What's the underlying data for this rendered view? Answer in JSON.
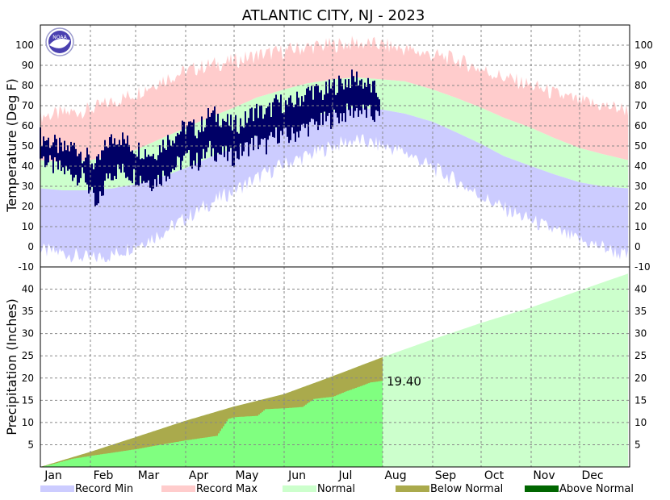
{
  "title": "ATLANTIC CITY, NJ - 2023",
  "logo_text": "NOAA",
  "colors": {
    "record_min": "#ccccff",
    "record_max": "#ffcccc",
    "normal": "#ccffcc",
    "below_normal": "#aaaa4c",
    "above_normal": "#006600",
    "observed_precip": "#80ff80",
    "observed_temp": "#000066",
    "grid": "#888888"
  },
  "chart_data": [
    {
      "type": "bar",
      "panel": "temperature",
      "ylabel": "Temperature (Deg F)",
      "ylim": [
        -10,
        110
      ],
      "yticks": [
        -10,
        0,
        10,
        20,
        30,
        40,
        50,
        60,
        70,
        80,
        90,
        100
      ],
      "x_unit": "day of year",
      "xlim": [
        1,
        365
      ],
      "grid": true,
      "series": [
        {
          "name": "Record Max",
          "x": [
            1,
            15,
            32,
            46,
            60,
            74,
            91,
            105,
            121,
            135,
            152,
            166,
            182,
            196,
            213,
            227,
            244,
            258,
            274,
            288,
            305,
            319,
            335,
            349,
            365
          ],
          "values": [
            65,
            66,
            68,
            72,
            76,
            82,
            87,
            90,
            92,
            95,
            97,
            99,
            100,
            101,
            100,
            98,
            95,
            93,
            88,
            84,
            80,
            76,
            72,
            70,
            68
          ]
        },
        {
          "name": "Normal high",
          "x": [
            1,
            15,
            32,
            46,
            60,
            74,
            91,
            105,
            121,
            135,
            152,
            166,
            182,
            196,
            213,
            227,
            244,
            258,
            274,
            288,
            305,
            319,
            335,
            349,
            365
          ],
          "values": [
            43,
            42,
            43,
            45,
            48,
            53,
            59,
            64,
            69,
            74,
            78,
            81,
            83,
            84,
            83,
            82,
            78,
            74,
            69,
            64,
            59,
            54,
            49,
            46,
            43
          ]
        },
        {
          "name": "Normal low",
          "x": [
            1,
            15,
            32,
            46,
            60,
            74,
            91,
            105,
            121,
            135,
            152,
            166,
            182,
            196,
            213,
            227,
            244,
            258,
            274,
            288,
            305,
            319,
            335,
            349,
            365
          ],
          "values": [
            29,
            28,
            28,
            29,
            31,
            34,
            39,
            44,
            49,
            55,
            60,
            64,
            67,
            69,
            68,
            66,
            62,
            57,
            51,
            45,
            40,
            36,
            32,
            30,
            29
          ]
        },
        {
          "name": "Record Min",
          "x": [
            1,
            15,
            32,
            46,
            60,
            74,
            91,
            105,
            121,
            135,
            152,
            166,
            182,
            196,
            213,
            227,
            244,
            258,
            274,
            288,
            305,
            319,
            335,
            349,
            365
          ],
          "values": [
            -2,
            -3,
            -6,
            -4,
            1,
            6,
            14,
            21,
            28,
            34,
            41,
            45,
            50,
            53,
            50,
            47,
            39,
            33,
            25,
            19,
            13,
            8,
            3,
            0,
            -5
          ]
        },
        {
          "name": "Observed high",
          "x": [
            1,
            8,
            15,
            22,
            29,
            36,
            43,
            50,
            57,
            64,
            71,
            78,
            85,
            92,
            99,
            106,
            113,
            120,
            127,
            134,
            141,
            148,
            155,
            162,
            169,
            176,
            183,
            190,
            197,
            204,
            211
          ],
          "values": [
            55,
            52,
            48,
            50,
            45,
            40,
            52,
            55,
            50,
            48,
            46,
            52,
            56,
            60,
            58,
            66,
            64,
            60,
            62,
            68,
            66,
            72,
            70,
            74,
            78,
            76,
            80,
            82,
            84,
            80,
            76
          ]
        },
        {
          "name": "Observed low",
          "x": [
            1,
            8,
            15,
            22,
            29,
            36,
            43,
            50,
            57,
            64,
            71,
            78,
            85,
            92,
            99,
            106,
            113,
            120,
            127,
            134,
            141,
            148,
            155,
            162,
            169,
            176,
            183,
            190,
            197,
            204,
            211
          ],
          "values": [
            45,
            40,
            38,
            36,
            34,
            18,
            36,
            38,
            36,
            34,
            32,
            36,
            40,
            44,
            42,
            48,
            46,
            44,
            48,
            52,
            50,
            56,
            54,
            58,
            60,
            62,
            64,
            66,
            68,
            66,
            64
          ]
        }
      ]
    },
    {
      "type": "area",
      "panel": "precipitation",
      "ylabel": "Precipitation (Inches)",
      "ylim": [
        0,
        45
      ],
      "yticks": [
        5,
        10,
        15,
        20,
        25,
        30,
        35,
        40
      ],
      "x_unit": "day of year",
      "xlim": [
        1,
        365
      ],
      "grid": true,
      "month_labels": [
        "Jan",
        "Feb",
        "Mar",
        "Apr",
        "May",
        "Jun",
        "Jul",
        "Aug",
        "Sep",
        "Oct",
        "Nov",
        "Dec"
      ],
      "month_start_days": [
        1,
        32,
        60,
        91,
        121,
        152,
        182,
        213,
        244,
        274,
        305,
        335
      ],
      "series": [
        {
          "name": "Normal",
          "x": [
            1,
            32,
            60,
            91,
            121,
            152,
            182,
            213,
            244,
            274,
            305,
            335,
            365
          ],
          "values": [
            0,
            3.4,
            6.7,
            10.4,
            13.6,
            16.4,
            20.4,
            24.7,
            28.7,
            32.4,
            35.9,
            39.7,
            43.5
          ]
        },
        {
          "name": "Observed",
          "x": [
            1,
            10,
            20,
            32,
            45,
            60,
            75,
            91,
            110,
            117,
            121,
            135,
            140,
            152,
            163,
            170,
            182,
            190,
            200,
            205,
            213
          ],
          "values": [
            0,
            0.8,
            1.8,
            2.5,
            3.2,
            4.0,
            5.0,
            6.0,
            7.0,
            10.8,
            11.2,
            11.5,
            13.0,
            13.2,
            13.5,
            15.3,
            15.8,
            17.0,
            18.3,
            19.0,
            19.4
          ]
        }
      ],
      "annotation": "19.40"
    }
  ],
  "legend": [
    {
      "label": "Record Min",
      "color": "#ccccff"
    },
    {
      "label": "Record Max",
      "color": "#ffcccc"
    },
    {
      "label": "Normal",
      "color": "#ccffcc"
    },
    {
      "label": "Below Normal",
      "color": "#aaaa4c"
    },
    {
      "label": "Above Normal",
      "color": "#006600"
    }
  ]
}
